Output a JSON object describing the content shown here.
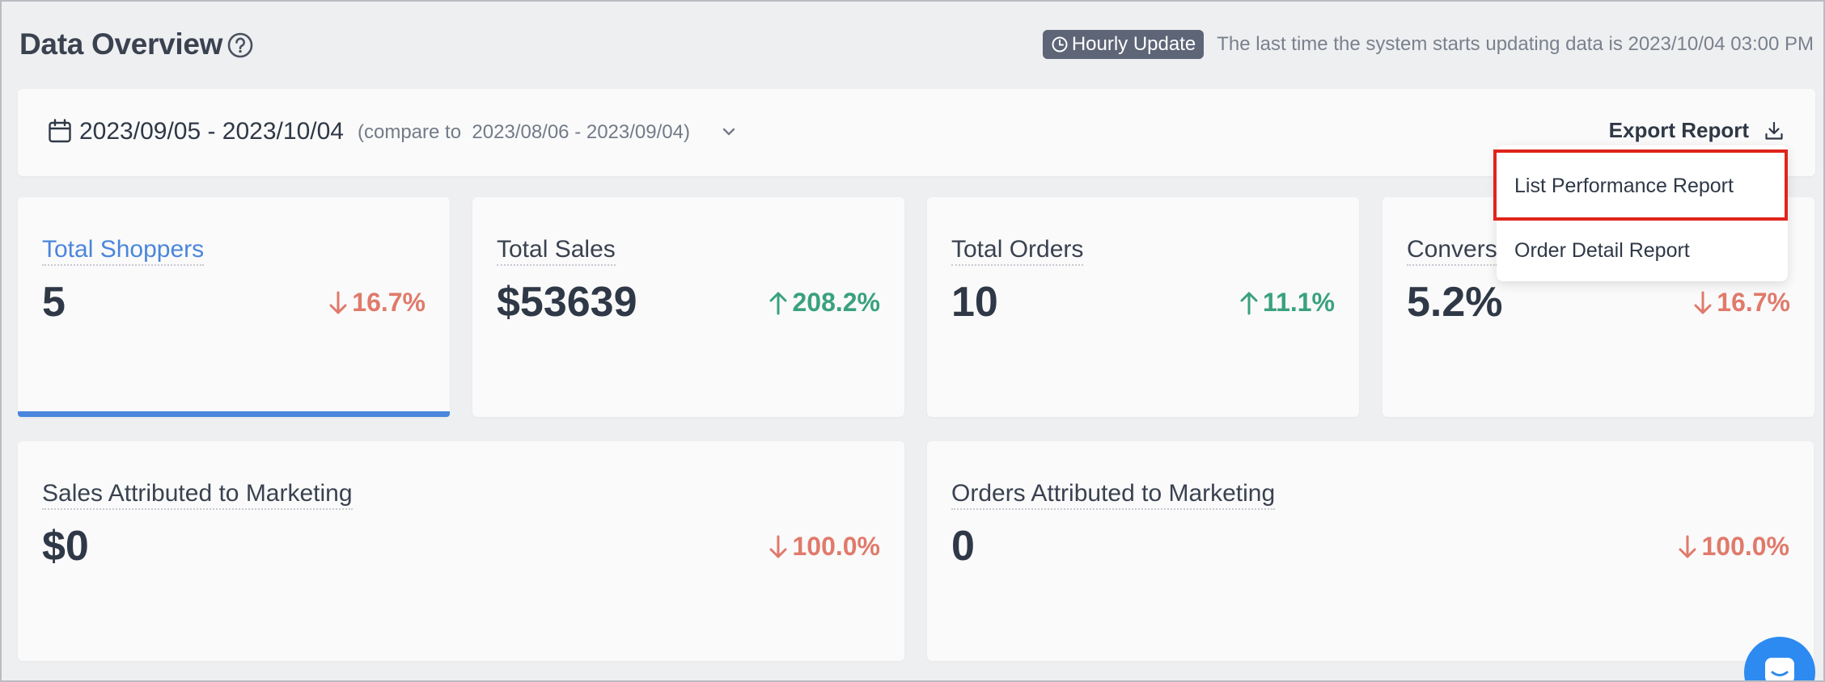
{
  "header": {
    "title": "Data Overview",
    "update_badge": "Hourly Update",
    "update_text": "The last time the system starts updating data is 2023/10/04 03:00 PM"
  },
  "date_bar": {
    "range": "2023/09/05 - 2023/10/04",
    "compare_prefix": "(compare to",
    "compare_range": "2023/08/06 - 2023/09/04)",
    "export_label": "Export Report"
  },
  "export_menu": {
    "items": [
      {
        "label": "List Performance Report"
      },
      {
        "label": "Order Detail Report"
      }
    ]
  },
  "metrics": [
    {
      "label": "Total Shoppers",
      "value": "5",
      "change": "16.7%",
      "direction": "down",
      "active": true
    },
    {
      "label": "Total Sales",
      "value": "$53639",
      "change": "208.2%",
      "direction": "up"
    },
    {
      "label": "Total Orders",
      "value": "10",
      "change": "11.1%",
      "direction": "up"
    },
    {
      "label": "Convers",
      "value": "5.2%",
      "change": "16.7%",
      "direction": "down"
    }
  ],
  "marketing": [
    {
      "label": "Sales Attributed to Marketing",
      "value": "$0",
      "change": "100.0%",
      "direction": "down"
    },
    {
      "label": "Orders Attributed to Marketing",
      "value": "0",
      "change": "100.0%",
      "direction": "down"
    }
  ],
  "colors": {
    "accent": "#4a86dc",
    "down": "#e07a6b",
    "up": "#3aa17e",
    "badge": "#5d6577",
    "highlight": "#e0241b",
    "chat": "#2d8af0"
  },
  "icons": {
    "help": "question-circle-icon",
    "clock": "clock-icon",
    "calendar": "calendar-icon",
    "chevron": "chevron-down-icon",
    "download": "download-icon",
    "arrow_up": "arrow-up-icon",
    "arrow_down": "arrow-down-icon",
    "chat": "chat-icon"
  }
}
